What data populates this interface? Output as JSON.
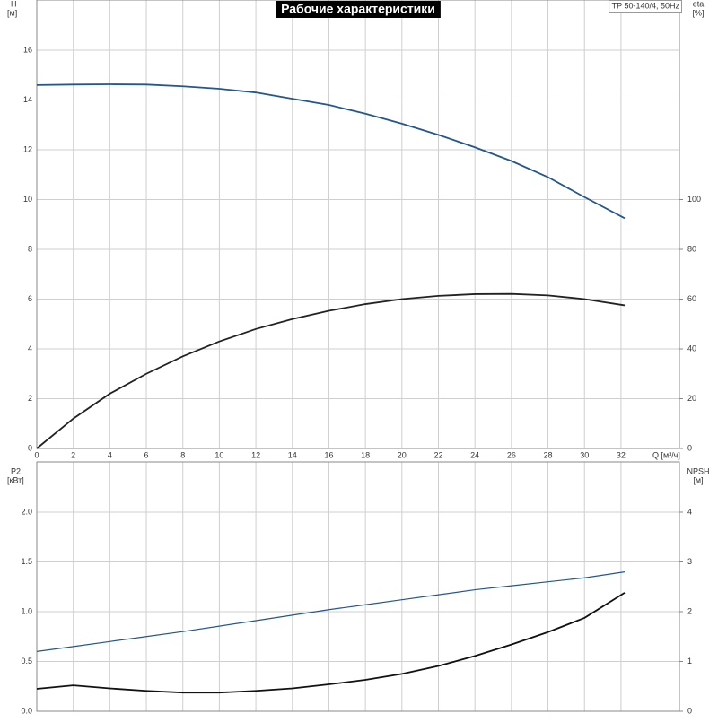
{
  "chart_data": [
    {
      "type": "line",
      "title": "Рабочие характеристики",
      "annotations": [
        "TP 50-140/4, 50Hz"
      ],
      "ylabel": "H",
      "yunit": "[м]",
      "y2label": "eta",
      "y2unit": "[%]",
      "xlabel": "Q [м³/ч]",
      "x": [
        0,
        2,
        4,
        6,
        8,
        10,
        12,
        14,
        16,
        18,
        20,
        22,
        24,
        26,
        28,
        30,
        32.2
      ],
      "xlim": [
        0,
        35.2
      ],
      "xticks": [
        0,
        2,
        4,
        6,
        8,
        10,
        12,
        14,
        16,
        18,
        20,
        22,
        24,
        26,
        28,
        30,
        32
      ],
      "ylim": [
        0,
        18
      ],
      "yticks": [
        0,
        2,
        4,
        6,
        8,
        10,
        12,
        14,
        16
      ],
      "y2lim": [
        0,
        180
      ],
      "y2ticks": [
        0,
        20,
        40,
        60,
        80,
        100
      ],
      "grid": true,
      "xtick_labels": true,
      "series": [
        {
          "color": "#24578c",
          "values": [
            14.6,
            14.62,
            14.63,
            14.62,
            14.55,
            14.45,
            14.3,
            14.05,
            13.8,
            13.45,
            13.05,
            12.6,
            12.1,
            11.55,
            10.9,
            10.1,
            9.25
          ]
        },
        {
          "color": "#222222",
          "axis": "y2",
          "values": [
            0,
            12,
            22,
            30,
            37,
            43,
            48,
            52,
            55.3,
            58,
            60,
            61.3,
            62,
            62.1,
            61.5,
            60,
            57.5
          ]
        }
      ]
    },
    {
      "type": "line",
      "ylabel": "P2",
      "yunit": "[кВт]",
      "y2label": "NPSH",
      "y2unit": "[м]",
      "x": [
        0,
        2,
        4,
        6,
        8,
        10,
        12,
        14,
        16,
        18,
        20,
        22,
        24,
        26,
        28,
        30,
        32.2
      ],
      "xlim": [
        0,
        35.2
      ],
      "xticks": [
        0,
        2,
        4,
        6,
        8,
        10,
        12,
        14,
        16,
        18,
        20,
        22,
        24,
        26,
        28,
        30,
        32
      ],
      "ylim": [
        0,
        2.5
      ],
      "yticks": [
        {
          "value": 0,
          "label": "0.0"
        },
        0.5,
        {
          "value": 1,
          "label": "1.0"
        },
        1.5,
        {
          "value": 2,
          "label": "2.0"
        }
      ],
      "y2lim": [
        0,
        5
      ],
      "y2ticks": [
        0,
        1,
        2,
        3,
        4
      ],
      "grid": true,
      "xtick_labels": false,
      "series": [
        {
          "color": "#24578c",
          "values": [
            0.6,
            0.65,
            0.7,
            0.75,
            0.8,
            0.855,
            0.91,
            0.965,
            1.02,
            1.07,
            1.12,
            1.17,
            1.22,
            1.26,
            1.3,
            1.34,
            1.4
          ]
        },
        {
          "color": "#111111",
          "axis": "y2",
          "values": [
            0.45,
            0.52,
            0.46,
            0.41,
            0.375,
            0.375,
            0.41,
            0.46,
            0.54,
            0.63,
            0.75,
            0.91,
            1.11,
            1.34,
            1.59,
            1.875,
            2.38
          ]
        }
      ]
    }
  ]
}
